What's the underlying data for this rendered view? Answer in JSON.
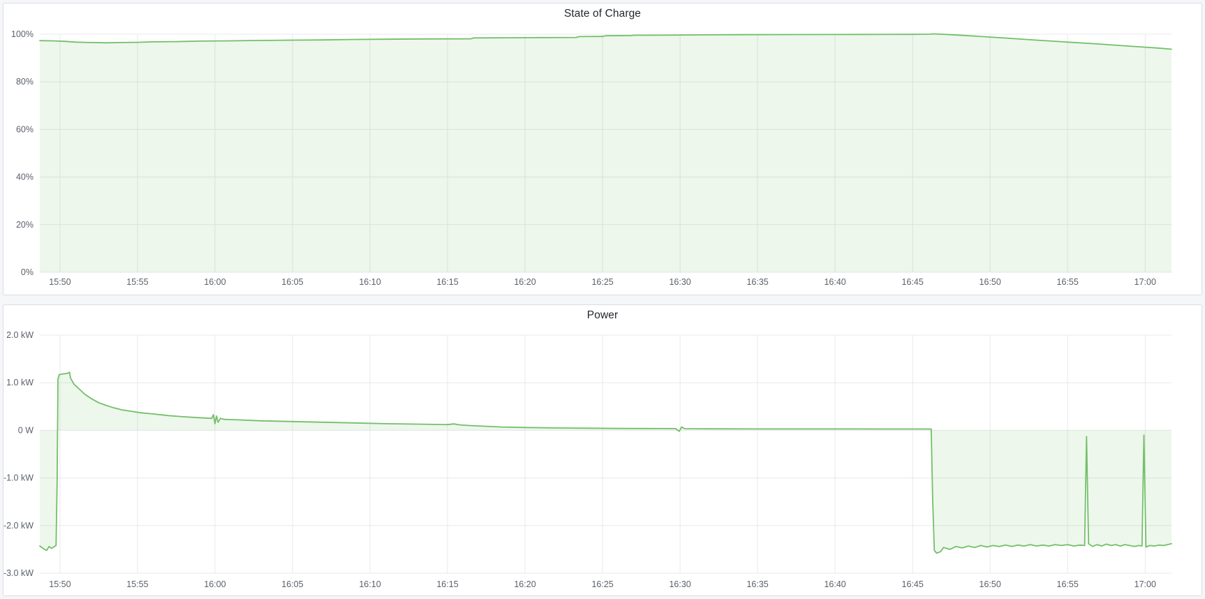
{
  "panels": [
    {
      "title": "State of Charge"
    },
    {
      "title": "Power"
    }
  ],
  "colors": {
    "series_green": "#73bf69",
    "series_fill": "rgba(115,191,105,0.13)",
    "grid": "#e7e8eb",
    "tick_text": "#5b6069",
    "panel_border": "#d9dde3",
    "panel_bg": "#ffffff",
    "page_bg": "#f4f6f8"
  },
  "chart_data": [
    {
      "type": "area",
      "title": "State of Charge",
      "xlabel": "",
      "ylabel": "",
      "ylim": [
        0,
        100
      ],
      "xlim": [
        48.7,
        121.7
      ],
      "grid": true,
      "legend": "none",
      "x_ticks": [
        {
          "v": 50,
          "label": "15:50"
        },
        {
          "v": 55,
          "label": "15:55"
        },
        {
          "v": 60,
          "label": "16:00"
        },
        {
          "v": 65,
          "label": "16:05"
        },
        {
          "v": 70,
          "label": "16:10"
        },
        {
          "v": 75,
          "label": "16:15"
        },
        {
          "v": 80,
          "label": "16:20"
        },
        {
          "v": 85,
          "label": "16:25"
        },
        {
          "v": 90,
          "label": "16:30"
        },
        {
          "v": 95,
          "label": "16:35"
        },
        {
          "v": 100,
          "label": "16:40"
        },
        {
          "v": 105,
          "label": "16:45"
        },
        {
          "v": 110,
          "label": "16:50"
        },
        {
          "v": 115,
          "label": "16:55"
        },
        {
          "v": 120,
          "label": "17:00"
        }
      ],
      "y_ticks": [
        {
          "v": 0,
          "label": "0%"
        },
        {
          "v": 20,
          "label": "20%"
        },
        {
          "v": 40,
          "label": "40%"
        },
        {
          "v": 60,
          "label": "60%"
        },
        {
          "v": 80,
          "label": "80%"
        },
        {
          "v": 100,
          "label": "100%"
        }
      ],
      "series": [
        {
          "name": "State of Charge",
          "unit": "%",
          "color": "#73bf69",
          "fill": "rgba(115,191,105,0.13)",
          "points": [
            [
              48.7,
              97.3
            ],
            [
              49.5,
              97.2
            ],
            [
              50.3,
              97.0
            ],
            [
              51,
              96.7
            ],
            [
              52,
              96.5
            ],
            [
              53,
              96.4
            ],
            [
              54,
              96.5
            ],
            [
              55,
              96.6
            ],
            [
              56,
              96.8
            ],
            [
              57.5,
              96.9
            ],
            [
              59,
              97.1
            ],
            [
              61,
              97.2
            ],
            [
              63,
              97.4
            ],
            [
              65,
              97.5
            ],
            [
              67,
              97.6
            ],
            [
              69,
              97.8
            ],
            [
              71,
              97.9
            ],
            [
              73,
              98.0
            ],
            [
              76.5,
              98.05
            ],
            [
              76.7,
              98.45
            ],
            [
              79,
              98.5
            ],
            [
              81,
              98.6
            ],
            [
              83.3,
              98.65
            ],
            [
              83.5,
              99.0
            ],
            [
              85,
              99.05
            ],
            [
              85.2,
              99.35
            ],
            [
              86.8,
              99.4
            ],
            [
              87.0,
              99.55
            ],
            [
              89,
              99.6
            ],
            [
              91,
              99.7
            ],
            [
              94,
              99.8
            ],
            [
              98,
              99.85
            ],
            [
              102,
              99.9
            ],
            [
              105,
              99.95
            ],
            [
              106.1,
              100.0
            ],
            [
              106.35,
              100.15
            ],
            [
              107.5,
              99.8
            ],
            [
              109,
              99.2
            ],
            [
              111,
              98.4
            ],
            [
              113,
              97.5
            ],
            [
              115,
              96.7
            ],
            [
              117,
              95.9
            ],
            [
              119,
              95.0
            ],
            [
              121,
              94.1
            ],
            [
              121.7,
              93.7
            ]
          ]
        }
      ]
    },
    {
      "type": "area",
      "title": "Power",
      "xlabel": "",
      "ylabel": "",
      "ylim": [
        -3.0,
        2.0
      ],
      "xlim": [
        48.7,
        121.7
      ],
      "grid": true,
      "legend": "none",
      "x_ticks": [
        {
          "v": 50,
          "label": "15:50"
        },
        {
          "v": 55,
          "label": "15:55"
        },
        {
          "v": 60,
          "label": "16:00"
        },
        {
          "v": 65,
          "label": "16:05"
        },
        {
          "v": 70,
          "label": "16:10"
        },
        {
          "v": 75,
          "label": "16:15"
        },
        {
          "v": 80,
          "label": "16:20"
        },
        {
          "v": 85,
          "label": "16:25"
        },
        {
          "v": 90,
          "label": "16:30"
        },
        {
          "v": 95,
          "label": "16:35"
        },
        {
          "v": 100,
          "label": "16:40"
        },
        {
          "v": 105,
          "label": "16:45"
        },
        {
          "v": 110,
          "label": "16:50"
        },
        {
          "v": 115,
          "label": "16:55"
        },
        {
          "v": 120,
          "label": "17:00"
        }
      ],
      "y_ticks": [
        {
          "v": 2.0,
          "label": "2.0 kW"
        },
        {
          "v": 1.0,
          "label": "1.0 kW"
        },
        {
          "v": 0,
          "label": "0 W"
        },
        {
          "v": -1.0,
          "label": "-1.0 kW"
        },
        {
          "v": -2.0,
          "label": "-2.0 kW"
        },
        {
          "v": -3.0,
          "label": "-3.0 kW"
        }
      ],
      "series": [
        {
          "name": "Power",
          "unit": "kW",
          "color": "#73bf69",
          "fill": "rgba(115,191,105,0.13)",
          "points": [
            [
              48.7,
              -2.43
            ],
            [
              49.0,
              -2.5
            ],
            [
              49.15,
              -2.52
            ],
            [
              49.3,
              -2.44
            ],
            [
              49.45,
              -2.48
            ],
            [
              49.6,
              -2.45
            ],
            [
              49.75,
              -2.42
            ],
            [
              49.82,
              -1.0
            ],
            [
              49.87,
              1.08
            ],
            [
              49.95,
              1.17
            ],
            [
              50.1,
              1.18
            ],
            [
              50.35,
              1.19
            ],
            [
              50.5,
              1.2
            ],
            [
              50.62,
              1.22
            ],
            [
              50.68,
              1.1
            ],
            [
              50.9,
              0.97
            ],
            [
              51.2,
              0.88
            ],
            [
              51.6,
              0.76
            ],
            [
              52.0,
              0.67
            ],
            [
              52.5,
              0.58
            ],
            [
              53.0,
              0.52
            ],
            [
              53.5,
              0.47
            ],
            [
              54.0,
              0.43
            ],
            [
              54.6,
              0.4
            ],
            [
              55.2,
              0.37
            ],
            [
              56.0,
              0.345
            ],
            [
              57.0,
              0.31
            ],
            [
              58.0,
              0.285
            ],
            [
              59.0,
              0.265
            ],
            [
              59.8,
              0.25
            ],
            [
              59.9,
              0.33
            ],
            [
              60.0,
              0.14
            ],
            [
              60.1,
              0.3
            ],
            [
              60.2,
              0.17
            ],
            [
              60.35,
              0.25
            ],
            [
              60.6,
              0.23
            ],
            [
              61.5,
              0.22
            ],
            [
              63,
              0.2
            ],
            [
              65,
              0.185
            ],
            [
              67,
              0.17
            ],
            [
              69,
              0.155
            ],
            [
              71,
              0.14
            ],
            [
              73,
              0.13
            ],
            [
              75,
              0.12
            ],
            [
              75.4,
              0.135
            ],
            [
              75.8,
              0.115
            ],
            [
              76.5,
              0.1
            ],
            [
              77.5,
              0.085
            ],
            [
              78.5,
              0.07
            ],
            [
              80,
              0.06
            ],
            [
              82,
              0.05
            ],
            [
              84,
              0.045
            ],
            [
              86,
              0.04
            ],
            [
              88,
              0.038
            ],
            [
              89.7,
              0.036
            ],
            [
              89.95,
              -0.02
            ],
            [
              90.1,
              0.07
            ],
            [
              90.3,
              0.035
            ],
            [
              92,
              0.032
            ],
            [
              95,
              0.03
            ],
            [
              98,
              0.03
            ],
            [
              101,
              0.03
            ],
            [
              104,
              0.028
            ],
            [
              106.2,
              0.028
            ],
            [
              106.3,
              -1.5
            ],
            [
              106.4,
              -2.52
            ],
            [
              106.55,
              -2.58
            ],
            [
              106.8,
              -2.55
            ],
            [
              107.0,
              -2.46
            ],
            [
              107.4,
              -2.5
            ],
            [
              107.8,
              -2.44
            ],
            [
              108.2,
              -2.47
            ],
            [
              108.6,
              -2.43
            ],
            [
              109.0,
              -2.46
            ],
            [
              109.4,
              -2.42
            ],
            [
              109.8,
              -2.45
            ],
            [
              110.2,
              -2.42
            ],
            [
              110.6,
              -2.44
            ],
            [
              111.0,
              -2.41
            ],
            [
              111.4,
              -2.44
            ],
            [
              111.8,
              -2.41
            ],
            [
              112.2,
              -2.43
            ],
            [
              112.6,
              -2.4
            ],
            [
              113.0,
              -2.43
            ],
            [
              113.4,
              -2.41
            ],
            [
              113.8,
              -2.43
            ],
            [
              114.2,
              -2.4
            ],
            [
              114.6,
              -2.42
            ],
            [
              115.0,
              -2.4
            ],
            [
              115.4,
              -2.43
            ],
            [
              115.8,
              -2.41
            ],
            [
              116.1,
              -2.42
            ],
            [
              116.22,
              -0.13
            ],
            [
              116.35,
              -2.38
            ],
            [
              116.6,
              -2.44
            ],
            [
              116.9,
              -2.4
            ],
            [
              117.2,
              -2.43
            ],
            [
              117.5,
              -2.39
            ],
            [
              117.8,
              -2.42
            ],
            [
              118.1,
              -2.4
            ],
            [
              118.4,
              -2.43
            ],
            [
              118.7,
              -2.4
            ],
            [
              119.0,
              -2.42
            ],
            [
              119.3,
              -2.44
            ],
            [
              119.6,
              -2.42
            ],
            [
              119.8,
              -2.43
            ],
            [
              119.92,
              -0.1
            ],
            [
              120.05,
              -2.45
            ],
            [
              120.3,
              -2.42
            ],
            [
              120.6,
              -2.43
            ],
            [
              120.9,
              -2.41
            ],
            [
              121.2,
              -2.42
            ],
            [
              121.45,
              -2.4
            ],
            [
              121.7,
              -2.38
            ]
          ]
        }
      ]
    }
  ]
}
